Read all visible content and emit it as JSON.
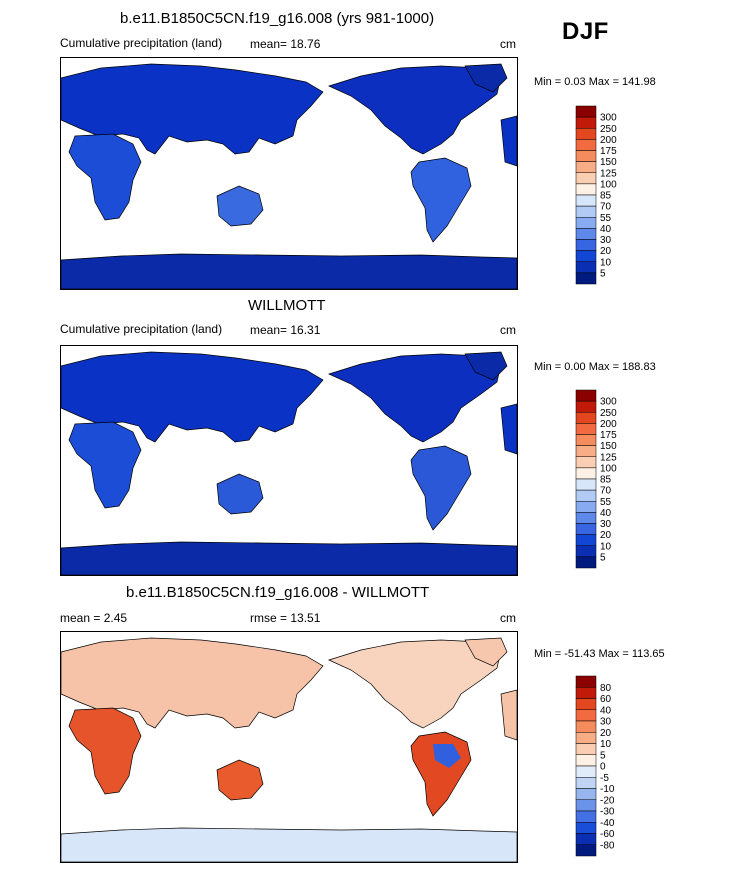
{
  "season": "DJF",
  "panels": [
    {
      "title": "b.e11.B1850C5CN.f19_g16.008 (yrs 981-1000)",
      "left_label": "Cumulative precipitation (land)",
      "mid_label": "mean=  18.76",
      "units": "cm",
      "minmax": "Min =   0.03 Max = 141.98",
      "scale": "precip"
    },
    {
      "title": "WILLMOTT",
      "left_label": "Cumulative precipitation (land)",
      "mid_label": "mean=  16.31",
      "units": "cm",
      "minmax": "Min =   0.00 Max = 188.83",
      "scale": "precip"
    },
    {
      "title": "b.e11.B1850C5CN.f19_g16.008 - WILLMOTT",
      "left_label": "mean =   2.45",
      "mid_label": "rmse =  13.51",
      "units": "cm",
      "minmax": "Min = -51.43 Max = 113.65",
      "scale": "diff"
    }
  ],
  "colorbars": {
    "precip": {
      "levels": [
        "300",
        "250",
        "200",
        "175",
        "150",
        "125",
        "100",
        "85",
        "70",
        "55",
        "40",
        "30",
        "20",
        "10",
        "5"
      ],
      "colors": [
        "#8b0000",
        "#c21a0a",
        "#e3471f",
        "#f26a3f",
        "#f58c5d",
        "#f7ad86",
        "#f9ceb2",
        "#fdf0e4",
        "#d7e6f8",
        "#b1cbf5",
        "#87aaf0",
        "#5f88eb",
        "#3866e3",
        "#1446d6",
        "#0a2fb3",
        "#001a80"
      ]
    },
    "diff": {
      "levels": [
        "80",
        "60",
        "40",
        "30",
        "20",
        "10",
        "5",
        "0",
        "-5",
        "-10",
        "-20",
        "-30",
        "-40",
        "-60",
        "-80"
      ],
      "colors": [
        "#8b0000",
        "#c21a0a",
        "#e3471f",
        "#f26a3f",
        "#f58c5d",
        "#f7ad86",
        "#f9ceb2",
        "#fdf0e4",
        "#e1ecfa",
        "#c0d5f5",
        "#97b6f0",
        "#6b93ea",
        "#4370e3",
        "#1b4ed8",
        "#0a2fb3",
        "#001a80"
      ]
    }
  }
}
